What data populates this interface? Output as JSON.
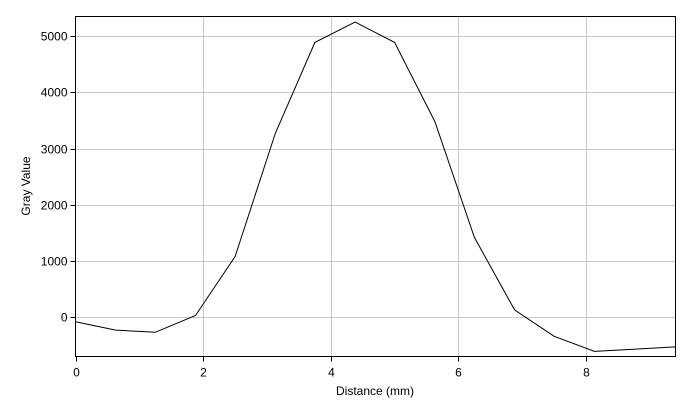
{
  "chart_data": {
    "type": "line",
    "title": "",
    "xlabel": "Distance (mm)",
    "ylabel": "Gray Value",
    "xlim": [
      0,
      9.4
    ],
    "ylim": [
      -700,
      5350
    ],
    "xticks": [
      0,
      2,
      4,
      6,
      8
    ],
    "yticks": [
      0,
      1000,
      2000,
      3000,
      4000,
      5000
    ],
    "grid": true,
    "series": [
      {
        "x": [
          0,
          0.63,
          1.25,
          1.88,
          2.5,
          3.13,
          3.75,
          4.38,
          5.0,
          5.63,
          6.25,
          6.88,
          7.5,
          8.13,
          9.4
        ],
        "y": [
          -80,
          -230,
          -270,
          30,
          1080,
          3270,
          4890,
          5250,
          4890,
          3480,
          1420,
          130,
          -340,
          -610,
          -530
        ]
      }
    ],
    "colors": {
      "line": "#000000",
      "grid": "#c8c8c8",
      "axis": "#000000"
    }
  }
}
